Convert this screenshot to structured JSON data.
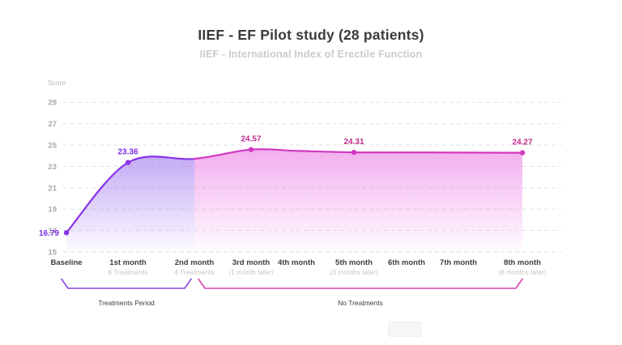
{
  "header": {
    "title": "IIEF - EF Pilot study (28 patients)",
    "subtitle": "IIEF - International Index of Erectile Function"
  },
  "chart_data": {
    "type": "area",
    "title": "IIEF - EF Pilot study (28 patients)",
    "subtitle": "IIEF - International Index of Erectile Function",
    "ylabel": "Score",
    "ylim": [
      15,
      29
    ],
    "yticks": [
      15,
      17,
      19,
      21,
      23,
      25,
      27,
      29
    ],
    "grid": "horizontal-dashed",
    "categories": [
      "Baseline",
      "1st month",
      "2nd month",
      "3rd month",
      "4th month",
      "5th month",
      "6th month",
      "7th month",
      "8th month"
    ],
    "category_sublabels": [
      "",
      "8 Treatments",
      "4 Treatments",
      "(1 month later)",
      "",
      "(3 months later)",
      "",
      "",
      "(6 months later)"
    ],
    "values": [
      16.79,
      23.36,
      23.7,
      24.57,
      24.45,
      24.31,
      24.3,
      24.29,
      24.27
    ],
    "labeled_points": [
      {
        "index": 0,
        "value": "16.79"
      },
      {
        "index": 1,
        "value": "23.36"
      },
      {
        "index": 3,
        "value": "24.57"
      },
      {
        "index": 5,
        "value": "24.31"
      },
      {
        "index": 8,
        "value": "24.27"
      }
    ],
    "segments": [
      {
        "name": "Treatments Period",
        "from_index": 0,
        "to_index": 2,
        "line_color": "#8934e8",
        "label_color": "#7b2ce4",
        "fill_color_rgb": "133,80,235"
      },
      {
        "name": "No Treatments",
        "from_index": 2,
        "to_index": 8,
        "line_color": "#d138c1",
        "label_color": "#bf2b8f",
        "fill_color_rgb": "232,112,225"
      }
    ],
    "brackets": [
      {
        "label": "Treatments Period",
        "from_index": 0,
        "to_index": 2,
        "color": "#8b46e0"
      },
      {
        "label": "No Treatments",
        "from_index": 2,
        "to_index": 8,
        "color": "#d645ad"
      }
    ]
  },
  "colors": {
    "background": "#ffffff",
    "grid": "#e1e1e1",
    "axis_text": "#a8a8a8",
    "axis_title_text": "#b8b8b8",
    "category_text": "#3e3e3e",
    "category_subtext": "#c6c6c6",
    "bracket_label_text": "#3e3e3e"
  }
}
